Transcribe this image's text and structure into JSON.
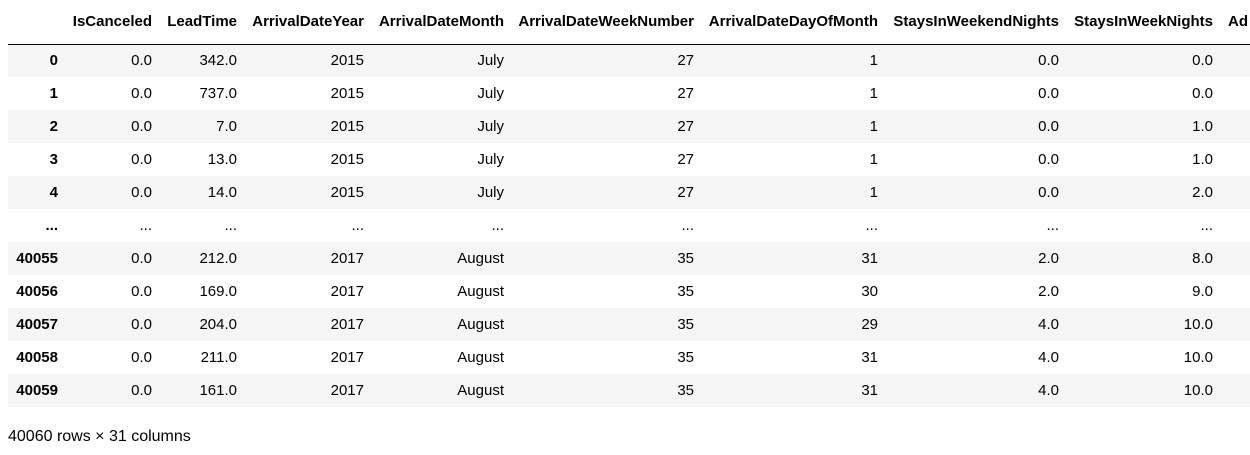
{
  "dataframe": {
    "columns": [
      {
        "name": "",
        "key": "index"
      },
      {
        "name": "IsCanceled",
        "key": "IsCanceled"
      },
      {
        "name": "LeadTime",
        "key": "LeadTime"
      },
      {
        "name": "ArrivalDateYear",
        "key": "ArrivalDateYear"
      },
      {
        "name": "ArrivalDateMonth",
        "key": "ArrivalDateMonth"
      },
      {
        "name": "ArrivalDateWeekNumber",
        "key": "ArrivalDateWeekNumber"
      },
      {
        "name": "ArrivalDateDayOfMonth",
        "key": "ArrivalDateDayOfMonth"
      },
      {
        "name": "StaysInWeekendNights",
        "key": "StaysInWeekendNights"
      },
      {
        "name": "StaysInWeekNights",
        "key": "StaysInWeekNights"
      },
      {
        "name": "Ad",
        "key": "Adults"
      }
    ],
    "rows": [
      {
        "index": "0",
        "cells": [
          "0.0",
          "342.0",
          "2015",
          "July",
          "27",
          "1",
          "0.0",
          "0.0",
          ""
        ]
      },
      {
        "index": "1",
        "cells": [
          "0.0",
          "737.0",
          "2015",
          "July",
          "27",
          "1",
          "0.0",
          "0.0",
          ""
        ]
      },
      {
        "index": "2",
        "cells": [
          "0.0",
          "7.0",
          "2015",
          "July",
          "27",
          "1",
          "0.0",
          "1.0",
          ""
        ]
      },
      {
        "index": "3",
        "cells": [
          "0.0",
          "13.0",
          "2015",
          "July",
          "27",
          "1",
          "0.0",
          "1.0",
          ""
        ]
      },
      {
        "index": "4",
        "cells": [
          "0.0",
          "14.0",
          "2015",
          "July",
          "27",
          "1",
          "0.0",
          "2.0",
          ""
        ]
      },
      {
        "index": "...",
        "cells": [
          "...",
          "...",
          "...",
          "...",
          "...",
          "...",
          "...",
          "...",
          ""
        ]
      },
      {
        "index": "40055",
        "cells": [
          "0.0",
          "212.0",
          "2017",
          "August",
          "35",
          "31",
          "2.0",
          "8.0",
          ""
        ]
      },
      {
        "index": "40056",
        "cells": [
          "0.0",
          "169.0",
          "2017",
          "August",
          "35",
          "30",
          "2.0",
          "9.0",
          ""
        ]
      },
      {
        "index": "40057",
        "cells": [
          "0.0",
          "204.0",
          "2017",
          "August",
          "35",
          "29",
          "4.0",
          "10.0",
          ""
        ]
      },
      {
        "index": "40058",
        "cells": [
          "0.0",
          "211.0",
          "2017",
          "August",
          "35",
          "31",
          "4.0",
          "10.0",
          ""
        ]
      },
      {
        "index": "40059",
        "cells": [
          "0.0",
          "161.0",
          "2017",
          "August",
          "35",
          "31",
          "4.0",
          "10.0",
          ""
        ]
      }
    ],
    "shape_summary": "40060 rows × 31 columns"
  },
  "colors": {
    "row_stripe": "#f5f5f5",
    "row_plain": "#ffffff",
    "header_rule": "#000000",
    "text": "#000000"
  }
}
